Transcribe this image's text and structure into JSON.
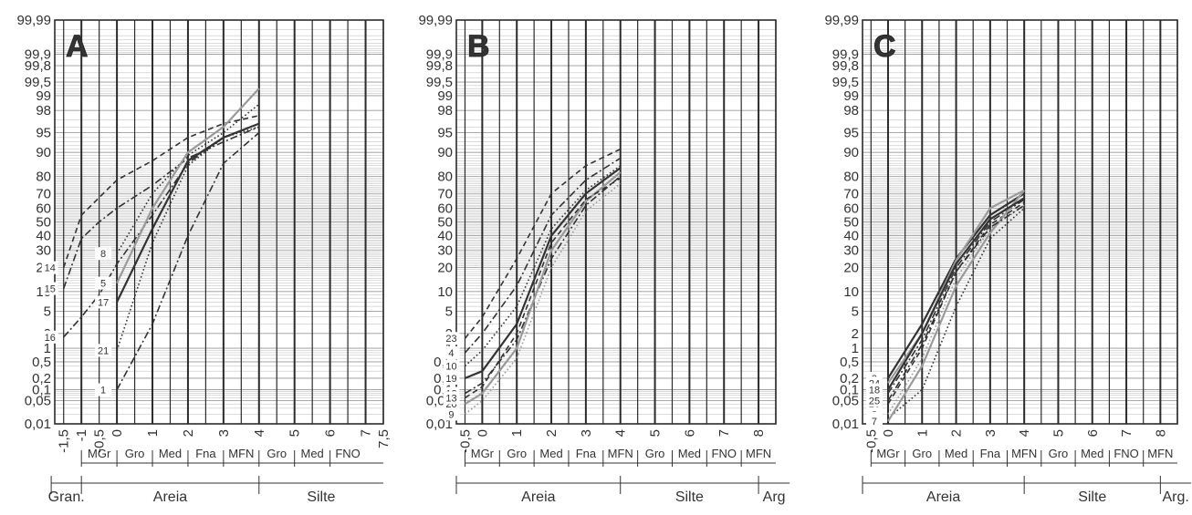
{
  "chart_data": [
    {
      "type": "line",
      "panel_label": "A",
      "xlim": [
        -1.75,
        7.5
      ],
      "x_ticks": [
        "-1,5",
        "-1",
        "-0,5",
        "0",
        "1",
        "2",
        "3",
        "4",
        "5",
        "6",
        "7",
        "7,5"
      ],
      "x_tick_values": [
        -1.5,
        -1,
        -0.5,
        0,
        1,
        2,
        3,
        4,
        5,
        6,
        7,
        7.5
      ],
      "y_scale": "probability",
      "y_ticks": [
        "0,01",
        "0,05",
        "0,1",
        "0,2",
        "0,5",
        "1",
        "2",
        "5",
        "10",
        "20",
        "30",
        "40",
        "50",
        "60",
        "70",
        "80",
        "90",
        "95",
        "98",
        "99",
        "99,5",
        "99,8",
        "99,9",
        "99,99"
      ],
      "y_tick_values": [
        0.01,
        0.05,
        0.1,
        0.2,
        0.5,
        1,
        2,
        5,
        10,
        20,
        30,
        40,
        50,
        60,
        70,
        80,
        90,
        95,
        98,
        99,
        99.5,
        99.8,
        99.9,
        99.99
      ],
      "size_classes": [
        "MGr",
        "Gro",
        "Med",
        "Fna",
        "MFN",
        "Gro",
        "Med",
        "FNO"
      ],
      "fractions": [
        "Gran.",
        "Areia",
        "Silte"
      ],
      "series": [
        {
          "name": "14",
          "style": "dashed",
          "color": "#333333",
          "x": [
            -1.5,
            -1,
            0,
            1,
            2,
            3,
            4
          ],
          "y": [
            20,
            55,
            78,
            87,
            94,
            96.5,
            97.5
          ]
        },
        {
          "name": "15",
          "style": "dashdot",
          "color": "#333333",
          "x": [
            -1.5,
            -1,
            -0.5,
            0,
            1,
            2,
            3,
            4
          ],
          "y": [
            11,
            38,
            50,
            60,
            75,
            88,
            93,
            96
          ]
        },
        {
          "name": "16",
          "style": "dashdot",
          "color": "#333333",
          "x": [
            -1.5,
            -1,
            -0.5,
            0,
            1,
            2,
            3,
            4
          ],
          "y": [
            1.7,
            4,
            9,
            22,
            55,
            86,
            94,
            96.5
          ]
        },
        {
          "name": "8",
          "style": "dotted",
          "color": "#333333",
          "x": [
            0,
            1,
            2,
            3,
            4
          ],
          "y": [
            28,
            70,
            89,
            95,
            98.5
          ]
        },
        {
          "name": "5",
          "style": "solid",
          "color": "#9a9a9a",
          "x": [
            0,
            1,
            2,
            3,
            4
          ],
          "y": [
            13,
            60,
            90,
            96,
            99.3
          ]
        },
        {
          "name": "17",
          "style": "solid",
          "color": "#333333",
          "x": [
            0,
            1,
            2,
            3,
            4
          ],
          "y": [
            7,
            45,
            87,
            94,
            96.5
          ]
        },
        {
          "name": "21",
          "style": "dotted",
          "color": "#333333",
          "x": [
            0,
            1,
            2,
            3,
            4
          ],
          "y": [
            0.9,
            35,
            85,
            94,
            96
          ]
        },
        {
          "name": "1",
          "style": "dashdot",
          "color": "#333333",
          "x": [
            0,
            1,
            2,
            3,
            4
          ],
          "y": [
            0.1,
            3,
            40,
            86,
            95
          ]
        }
      ]
    },
    {
      "type": "line",
      "panel_label": "B",
      "xlim": [
        -0.75,
        8.5
      ],
      "x_ticks": [
        "-0,5",
        "0",
        "1",
        "2",
        "3",
        "4",
        "5",
        "6",
        "7",
        "8"
      ],
      "x_tick_values": [
        -0.5,
        0,
        1,
        2,
        3,
        4,
        5,
        6,
        7,
        8
      ],
      "y_scale": "probability",
      "y_ticks": [
        "0,01",
        "0,05",
        "0,1",
        "0,2",
        "0,5",
        "1",
        "2",
        "5",
        "10",
        "20",
        "30",
        "40",
        "50",
        "60",
        "70",
        "80",
        "90",
        "95",
        "98",
        "99",
        "99,5",
        "99,8",
        "99,9",
        "99,99"
      ],
      "y_tick_values": [
        0.01,
        0.05,
        0.1,
        0.2,
        0.5,
        1,
        2,
        5,
        10,
        20,
        30,
        40,
        50,
        60,
        70,
        80,
        90,
        95,
        98,
        99,
        99.5,
        99.8,
        99.9,
        99.99
      ],
      "size_classes": [
        "MGr",
        "Gro",
        "Med",
        "Fna",
        "MFN",
        "Gro",
        "Med",
        "FNO",
        "MFN"
      ],
      "fractions": [
        "Areia",
        "Silte",
        "Arg"
      ],
      "series": [
        {
          "name": "23",
          "style": "dashed",
          "color": "#333333",
          "x": [
            -0.5,
            0,
            1,
            2,
            3,
            4
          ],
          "y": [
            1.6,
            4,
            25,
            70,
            85,
            91
          ]
        },
        {
          "name": "4",
          "style": "dashdot",
          "color": "#333333",
          "x": [
            -0.5,
            0,
            1,
            2,
            3,
            4
          ],
          "y": [
            0.8,
            2,
            12,
            55,
            78,
            88
          ]
        },
        {
          "name": "10",
          "style": "dotted",
          "color": "#333333",
          "x": [
            -0.5,
            0,
            1,
            2,
            3,
            4
          ],
          "y": [
            0.4,
            0.9,
            6,
            45,
            72,
            85
          ]
        },
        {
          "name": "19",
          "style": "solid",
          "color": "#333333",
          "x": [
            -0.5,
            0,
            1,
            2,
            3,
            4
          ],
          "y": [
            0.2,
            0.3,
            3,
            40,
            70,
            84
          ]
        },
        {
          "name": "12",
          "style": "dashdot",
          "color": "#333333",
          "x": [
            -0.5,
            0,
            1,
            2,
            3,
            4
          ],
          "y": [
            0.08,
            0.15,
            1.5,
            25,
            62,
            80
          ]
        },
        {
          "name": "20",
          "style": "solid",
          "color": "#9a9a9a",
          "x": [
            -0.5,
            0,
            1,
            2,
            3,
            4
          ],
          "y": [
            0.04,
            0.08,
            1,
            30,
            65,
            82
          ]
        },
        {
          "name": "9",
          "style": "dotted",
          "color": "#9a9a9a",
          "x": [
            -0.5,
            0,
            1,
            2,
            3,
            4
          ],
          "y": [
            0.02,
            0.05,
            0.6,
            20,
            58,
            76
          ]
        },
        {
          "name": "13",
          "style": "dashed",
          "color": "#333333",
          "x": [
            -0.5,
            0,
            1,
            2,
            3,
            4
          ],
          "y": [
            0.06,
            0.12,
            2,
            35,
            66,
            79
          ]
        }
      ]
    },
    {
      "type": "line",
      "panel_label": "C",
      "xlim": [
        -0.75,
        8.5
      ],
      "x_ticks": [
        "-0,5",
        "0",
        "1",
        "2",
        "3",
        "4",
        "5",
        "6",
        "7",
        "8"
      ],
      "x_tick_values": [
        -0.5,
        0,
        1,
        2,
        3,
        4,
        5,
        6,
        7,
        8
      ],
      "y_scale": "probability",
      "y_ticks": [
        "0,01",
        "0,05",
        "0,1",
        "0,2",
        "0,5",
        "1",
        "2",
        "5",
        "10",
        "20",
        "30",
        "40",
        "50",
        "60",
        "70",
        "80",
        "90",
        "95",
        "98",
        "99",
        "99,5",
        "99,8",
        "99,9",
        "99,99"
      ],
      "y_tick_values": [
        0.01,
        0.05,
        0.1,
        0.2,
        0.5,
        1,
        2,
        5,
        10,
        20,
        30,
        40,
        50,
        60,
        70,
        80,
        90,
        95,
        98,
        99,
        99.5,
        99.8,
        99.9,
        99.99
      ],
      "size_classes": [
        "MGr",
        "Gro",
        "Med",
        "Fna",
        "MFN",
        "Gro",
        "Med",
        "FNO",
        "MFN"
      ],
      "fractions": [
        "Areia",
        "Silte",
        "Arg."
      ],
      "series": [
        {
          "name": "3",
          "style": "solid",
          "color": "#333333",
          "x": [
            0,
            1,
            2,
            3,
            4
          ],
          "y": [
            0.2,
            3,
            25,
            55,
            70
          ]
        },
        {
          "name": "11",
          "style": "dashdot",
          "color": "#333333",
          "x": [
            0,
            1,
            2,
            3,
            4
          ],
          "y": [
            0.08,
            1.5,
            20,
            50,
            66
          ]
        },
        {
          "name": "26",
          "style": "dashed",
          "color": "#333333",
          "x": [
            0,
            1,
            2,
            3,
            4
          ],
          "y": [
            0.04,
            1,
            18,
            48,
            64
          ]
        },
        {
          "name": "2",
          "style": "dotted",
          "color": "#9a9a9a",
          "x": [
            0,
            1,
            2,
            3,
            4
          ],
          "y": [
            0.02,
            0.6,
            15,
            45,
            62
          ]
        },
        {
          "name": "22",
          "style": "dotted",
          "color": "#333333",
          "x": [
            0,
            1,
            2,
            3,
            4
          ],
          "y": [
            0.015,
            0.1,
            6,
            38,
            60
          ]
        },
        {
          "name": "7",
          "style": "solid",
          "color": "#9a9a9a",
          "x": [
            0,
            1,
            2,
            3,
            4
          ],
          "y": [
            0.012,
            0.4,
            12,
            42,
            72
          ]
        },
        {
          "name": "24",
          "style": "solid",
          "color": "#9a9a9a",
          "x": [
            0,
            1,
            2,
            3,
            4
          ],
          "y": [
            0.15,
            2,
            24,
            60,
            72
          ]
        },
        {
          "name": "18",
          "style": "solid",
          "color": "#333333",
          "x": [
            0,
            1,
            2,
            3,
            4
          ],
          "y": [
            0.1,
            2,
            22,
            52,
            67
          ]
        },
        {
          "name": "25",
          "style": "dashdot",
          "color": "#333333",
          "x": [
            0,
            1,
            2,
            3,
            4
          ],
          "y": [
            0.05,
            1.2,
            18,
            46,
            62
          ]
        }
      ]
    }
  ]
}
